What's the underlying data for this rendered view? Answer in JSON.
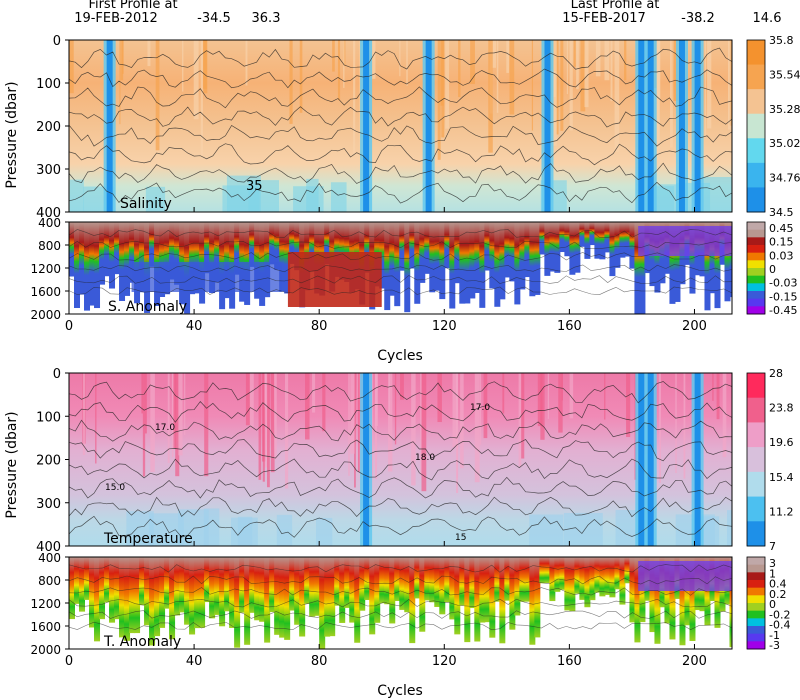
{
  "header": {
    "first_label": "First Profile at",
    "first_date": "19-FEB-2012",
    "first_lat": "-34.5",
    "first_lon": "36.3",
    "last_label": "Last Profile at",
    "last_date": "15-FEB-2017",
    "last_lat": "-38.2",
    "last_lon": "14.6"
  },
  "colors": {
    "salinity": [
      "#1e90e8",
      "#3ab4ee",
      "#62d8ee",
      "#c8e6d2",
      "#f4c392",
      "#f6a450",
      "#f4922e"
    ],
    "salinity_anomaly": [
      "#a000e8",
      "#5838f0",
      "#3a5ad8",
      "#00c0e0",
      "#20c020",
      "#a0d020",
      "#f0e000",
      "#f07800",
      "#d82010",
      "#a81a18",
      "#b89890",
      "#c0a8a8"
    ],
    "temperature": [
      "#1e90e8",
      "#4cc0f0",
      "#b0dcec",
      "#d8c0dc",
      "#ee9ec8",
      "#f0608c",
      "#ff2a5c"
    ],
    "temperature_anomaly": [
      "#a000e8",
      "#5838f0",
      "#3a5ad8",
      "#00c0e0",
      "#20c020",
      "#a0d020",
      "#f0e000",
      "#f07800",
      "#d82010",
      "#a81a18",
      "#b89890",
      "#c0a8a8"
    ]
  },
  "chart_data": [
    {
      "type": "heatmap",
      "title": "",
      "panel_label": "Salinity",
      "xlabel": "",
      "ylabel": "Pressure (dbar)",
      "x_range": [
        0,
        212
      ],
      "y_range": [
        0,
        400
      ],
      "y_reversed": true,
      "y_ticks": [
        "0",
        "100",
        "200",
        "300",
        "400"
      ],
      "colorbar": [
        "34.5",
        "34.76",
        "35.02",
        "35.28",
        "35.54",
        "35.8"
      ],
      "contour_labels": [
        "35"
      ],
      "fresh_event_cycles": [
        13,
        95,
        115,
        153,
        183,
        186,
        196,
        201
      ]
    },
    {
      "type": "heatmap",
      "title": "",
      "panel_label": "S. Anomaly",
      "xlabel": "Cycles",
      "ylabel": "",
      "x_range": [
        0,
        212
      ],
      "x_ticks": [
        "0",
        "40",
        "80",
        "120",
        "160",
        "200"
      ],
      "y_range": [
        400,
        2000
      ],
      "y_reversed": true,
      "y_ticks": [
        "400",
        "800",
        "1200",
        "1600",
        "2000"
      ],
      "colorbar": [
        "0.45",
        "0.15",
        "0.03",
        "0",
        "-0.03",
        "-0.15",
        "-0.45"
      ]
    },
    {
      "type": "heatmap",
      "title": "",
      "panel_label": "Temperature",
      "xlabel": "",
      "ylabel": "Pressure (dbar)",
      "x_range": [
        0,
        212
      ],
      "y_range": [
        0,
        400
      ],
      "y_reversed": true,
      "y_ticks": [
        "0",
        "100",
        "200",
        "300",
        "400"
      ],
      "colorbar": [
        "7",
        "11.2",
        "15.4",
        "19.6",
        "23.8",
        "28"
      ],
      "contour_labels": [
        "17.0",
        "15.0",
        "18.0",
        "17.0",
        "15"
      ],
      "cold_event_cycles": [
        95,
        183,
        186,
        201
      ]
    },
    {
      "type": "heatmap",
      "title": "",
      "panel_label": "T. Anomaly",
      "xlabel": "Cycles",
      "ylabel": "",
      "x_range": [
        0,
        212
      ],
      "x_ticks": [
        "0",
        "40",
        "80",
        "120",
        "160",
        "200"
      ],
      "y_range": [
        400,
        2000
      ],
      "y_reversed": true,
      "y_ticks": [
        "400",
        "800",
        "1200",
        "1600",
        "2000"
      ],
      "colorbar": [
        "3",
        "1",
        "0.4",
        "0.2",
        "0",
        "-0.2",
        "-0.4",
        "-1",
        "-3"
      ]
    }
  ]
}
